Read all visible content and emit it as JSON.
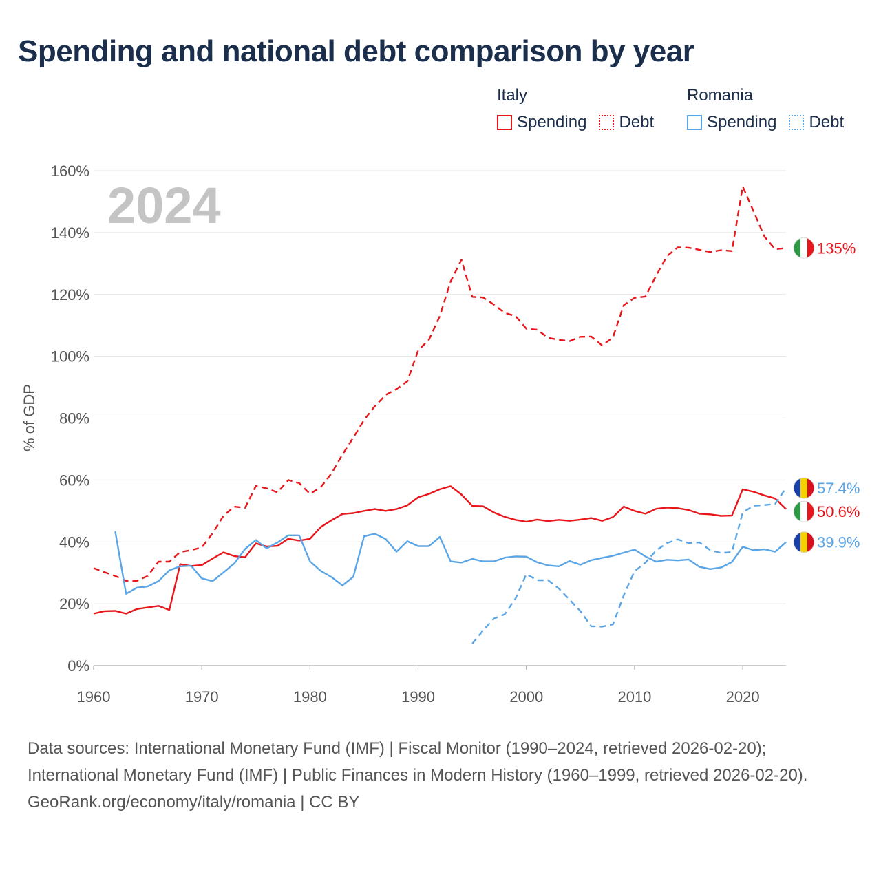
{
  "title": "Spending and national debt comparison by year",
  "legend": {
    "groups": [
      {
        "country": "Italy",
        "color": "#e8161b",
        "items": [
          {
            "label": "Spending",
            "style": "solid"
          },
          {
            "label": "Debt",
            "style": "dotted"
          }
        ]
      },
      {
        "country": "Romania",
        "color": "#5aa5e6",
        "items": [
          {
            "label": "Spending",
            "style": "solid"
          },
          {
            "label": "Debt",
            "style": "dotted"
          }
        ]
      }
    ]
  },
  "footer": {
    "sources": "Data sources: International Monetary Fund (IMF) | Fiscal Monitor (1990–2024, retrieved 2026-02-20); International Monetary Fund (IMF) | Public Finances in Modern History (1960–1999, retrieved 2026-02-20).",
    "credit": "GeoRank.org/economy/italy/romania | CC BY"
  },
  "chart_data": {
    "type": "line",
    "title": "Spending and national debt comparison by year",
    "year_label": "2024",
    "xlabel": "",
    "ylabel": "% of GDP",
    "xlim": [
      1960,
      2024
    ],
    "ylim": [
      0,
      160
    ],
    "x_ticks": [
      1960,
      1970,
      1980,
      1990,
      2000,
      2010,
      2020
    ],
    "y_ticks": [
      0,
      20,
      40,
      60,
      80,
      100,
      120,
      140,
      160
    ],
    "y_tick_labels": [
      "0%",
      "20%",
      "40%",
      "60%",
      "80%",
      "100%",
      "120%",
      "140%",
      "160%"
    ],
    "grid": true,
    "series": [
      {
        "name": "Italy Spending",
        "country": "Italy",
        "color": "#e8161b",
        "dash": false,
        "flag": "italy",
        "end_label": "50.6%",
        "start_year": 1960,
        "values": [
          16.8,
          17.6,
          17.7,
          16.8,
          18.3,
          18.8,
          19.3,
          18.0,
          32.8,
          32.2,
          32.5,
          34.6,
          36.6,
          35.4,
          35.0,
          39.5,
          38.5,
          38.7,
          41.0,
          40.4,
          41.0,
          44.8,
          47.0,
          49.0,
          49.3,
          50.0,
          50.6,
          50.0,
          50.6,
          51.8,
          54.4,
          55.5,
          57.0,
          58.0,
          55.3,
          51.6,
          51.5,
          49.5,
          48.1,
          47.1,
          46.5,
          47.2,
          46.7,
          47.1,
          46.8,
          47.2,
          47.7,
          46.8,
          48.0,
          51.4,
          50.0,
          49.1,
          50.7,
          51.1,
          50.9,
          50.3,
          49.1,
          48.9,
          48.4,
          48.5,
          57.0,
          56.2,
          55.0,
          54.0,
          50.6
        ]
      },
      {
        "name": "Italy Debt",
        "country": "Italy",
        "color": "#e8161b",
        "dash": true,
        "flag": "italy",
        "end_label": "135%",
        "start_year": 1960,
        "values": [
          31.5,
          30.2,
          29.0,
          27.4,
          27.4,
          29.0,
          33.6,
          33.6,
          36.7,
          37.3,
          38.2,
          42.8,
          48.4,
          51.4,
          51.0,
          58.1,
          57.3,
          56.0,
          60.0,
          59.0,
          55.5,
          57.7,
          62.2,
          68.2,
          73.7,
          79.4,
          83.9,
          87.5,
          89.4,
          91.9,
          101.9,
          105.4,
          113.0,
          124.2,
          131.2,
          119.2,
          119.0,
          116.7,
          114.0,
          113.0,
          108.9,
          108.6,
          106.0,
          105.3,
          104.9,
          106.3,
          106.4,
          103.5,
          106.1,
          116.5,
          118.9,
          119.3,
          126.1,
          132.4,
          135.2,
          135.1,
          134.4,
          133.7,
          134.3,
          134.0,
          154.9,
          146.9,
          138.7,
          134.6,
          135.0
        ]
      },
      {
        "name": "Romania Spending",
        "country": "Romania",
        "color": "#5aa5e6",
        "dash": false,
        "flag": "romania",
        "end_label": "39.9%",
        "start_year": 1962,
        "values": [
          43.4,
          23.2,
          25.2,
          25.6,
          27.3,
          30.8,
          32.1,
          32.3,
          28.2,
          27.3,
          30.1,
          33.0,
          37.7,
          40.6,
          37.9,
          39.8,
          42.1,
          42.1,
          33.7,
          30.6,
          28.6,
          25.9,
          28.7,
          41.8,
          42.6,
          40.9,
          36.8,
          40.2,
          38.6,
          38.6,
          41.6,
          33.7,
          33.3,
          34.5,
          33.7,
          33.7,
          34.9,
          35.3,
          35.2,
          33.4,
          32.4,
          32.1,
          33.8,
          32.6,
          34.1,
          34.8,
          35.5,
          36.5,
          37.5,
          35.3,
          33.6,
          34.2,
          34.0,
          34.3,
          31.9,
          31.2,
          31.7,
          33.5,
          38.4,
          37.3,
          37.6,
          36.8,
          39.9
        ]
      },
      {
        "name": "Romania Debt",
        "country": "Romania",
        "color": "#5aa5e6",
        "dash": true,
        "flag": "romania",
        "end_label": "57.4%",
        "start_year": 1995,
        "values": [
          7.1,
          11.4,
          15.2,
          16.6,
          21.7,
          29.6,
          27.6,
          27.6,
          24.9,
          21.3,
          17.6,
          12.7,
          12.6,
          13.3,
          22.7,
          30.5,
          33.3,
          37.2,
          39.6,
          40.8,
          39.6,
          39.8,
          37.3,
          36.4,
          36.7,
          49.5,
          51.7,
          51.9,
          52.3,
          57.4
        ]
      }
    ]
  }
}
